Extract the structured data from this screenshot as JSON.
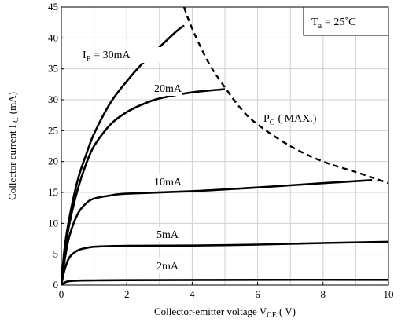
{
  "chart_data": {
    "type": "line",
    "xlabel": "Collector-emitter voltage V",
    "xlabel_sub": "CE",
    "xlabel_unit": "( V)",
    "ylabel": "Collector current I",
    "ylabel_sub": "C",
    "ylabel_unit": "(mA)",
    "xlim": [
      0,
      10
    ],
    "ylim": [
      0,
      45
    ],
    "x_ticks": [
      0,
      2,
      4,
      6,
      8,
      10
    ],
    "y_ticks": [
      0,
      5,
      10,
      15,
      20,
      25,
      30,
      35,
      40,
      45
    ],
    "grid": true,
    "grid_x_step": 1,
    "condition": {
      "prefix": "T",
      "sub": "a",
      "rest": "= 25˚C"
    },
    "series": [
      {
        "name": "30mA",
        "label_prefix": "I",
        "label_sub": "F",
        "label_rest": "= 30mA",
        "style": "solid",
        "points": [
          [
            0,
            0
          ],
          [
            0.1,
            6
          ],
          [
            0.25,
            11
          ],
          [
            0.5,
            17
          ],
          [
            0.75,
            21
          ],
          [
            1,
            24.5
          ],
          [
            1.5,
            29.5
          ],
          [
            2,
            33
          ],
          [
            2.5,
            36
          ],
          [
            3,
            38.5
          ],
          [
            3.5,
            41
          ],
          [
            3.75,
            42
          ]
        ]
      },
      {
        "name": "20mA",
        "label": "20mA",
        "style": "solid",
        "points": [
          [
            0,
            0
          ],
          [
            0.1,
            5
          ],
          [
            0.25,
            10
          ],
          [
            0.5,
            15.5
          ],
          [
            0.75,
            19.5
          ],
          [
            1,
            22.5
          ],
          [
            1.5,
            26
          ],
          [
            2,
            28
          ],
          [
            2.5,
            29.3
          ],
          [
            3,
            30.2
          ],
          [
            4,
            31.2
          ],
          [
            5,
            31.7
          ]
        ]
      },
      {
        "name": "10mA",
        "label": "10mA",
        "style": "solid",
        "points": [
          [
            0,
            0
          ],
          [
            0.1,
            4
          ],
          [
            0.25,
            8
          ],
          [
            0.5,
            11.5
          ],
          [
            0.75,
            13.2
          ],
          [
            1,
            14
          ],
          [
            1.5,
            14.5
          ],
          [
            2,
            14.8
          ],
          [
            4,
            15.2
          ],
          [
            6,
            15.8
          ],
          [
            8,
            16.5
          ],
          [
            9.5,
            17
          ]
        ]
      },
      {
        "name": "5mA",
        "label": "5mA",
        "style": "solid",
        "points": [
          [
            0,
            0
          ],
          [
            0.1,
            2.5
          ],
          [
            0.25,
            4.5
          ],
          [
            0.5,
            5.6
          ],
          [
            0.75,
            6
          ],
          [
            1,
            6.2
          ],
          [
            1.5,
            6.3
          ],
          [
            2,
            6.35
          ],
          [
            4,
            6.4
          ],
          [
            6,
            6.55
          ],
          [
            8,
            6.8
          ],
          [
            10,
            7
          ]
        ]
      },
      {
        "name": "2mA",
        "label": "2mA",
        "style": "solid",
        "points": [
          [
            0,
            0
          ],
          [
            0.1,
            0.4
          ],
          [
            0.2,
            0.6
          ],
          [
            0.4,
            0.7
          ],
          [
            0.8,
            0.75
          ],
          [
            2,
            0.8
          ],
          [
            6,
            0.85
          ],
          [
            10,
            0.85
          ]
        ]
      },
      {
        "name": "PC(MAX.)",
        "label_prefix": "P",
        "label_sub": "C",
        "label_rest": "( MAX.)",
        "style": "dashed",
        "points": [
          [
            3.75,
            45
          ],
          [
            4,
            41.5
          ],
          [
            4.5,
            36
          ],
          [
            5,
            32
          ],
          [
            5.5,
            28.5
          ],
          [
            6,
            26
          ],
          [
            7,
            22.5
          ],
          [
            8,
            20
          ],
          [
            9,
            18.3
          ],
          [
            10,
            16.5
          ]
        ]
      }
    ]
  }
}
